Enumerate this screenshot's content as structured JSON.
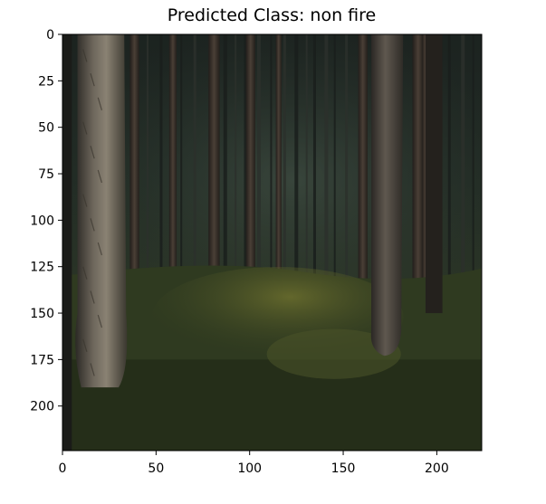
{
  "chart_data": {
    "type": "image",
    "title": "Predicted Class: non fire",
    "image_size": [
      224,
      224
    ],
    "xlim": [
      0,
      224
    ],
    "ylim": [
      224,
      0
    ],
    "x_ticks": [
      0,
      50,
      100,
      150,
      200
    ],
    "y_ticks": [
      0,
      25,
      50,
      75,
      100,
      125,
      150,
      175,
      200
    ],
    "grid": false,
    "image_content": {
      "scene": "dark pine forest with tall trunks and mossy ground"
    }
  }
}
